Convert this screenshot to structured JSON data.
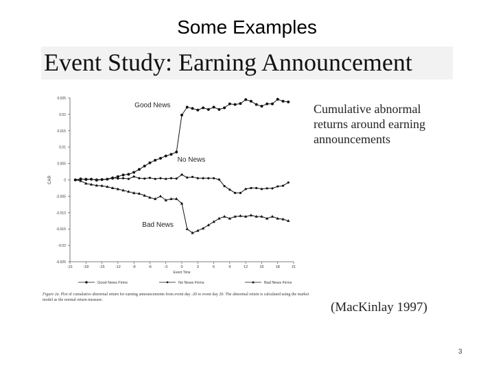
{
  "slide": {
    "title": "Some Examples",
    "banner": "Event Study: Earning Announcement",
    "side_caption": "Cumulative abnormal returns around earning announcements",
    "citation": "(MacKinlay 1997)",
    "page_number": "3",
    "figure_label": "Figure 2a.",
    "figure_text": "Plot of cumulative abnormal return for earning announcements from event day -20 to event day 20. The abnormal return is calculated using the market model as the normal return measure."
  },
  "chart_data": {
    "type": "line",
    "x": [
      -20,
      -19,
      -18,
      -17,
      -16,
      -15,
      -14,
      -13,
      -12,
      -11,
      -10,
      -9,
      -8,
      -7,
      -6,
      -5,
      -4,
      -3,
      -2,
      -1,
      0,
      1,
      2,
      3,
      4,
      5,
      6,
      7,
      8,
      9,
      10,
      11,
      12,
      13,
      14,
      15,
      16,
      17,
      18,
      19,
      20
    ],
    "series": [
      {
        "name": "Good News Firms",
        "marker": "circle",
        "label": "Good News",
        "values": [
          0.0,
          0.0003,
          0.0001,
          0.0002,
          -0.0001,
          0.0001,
          0.0002,
          0.0005,
          0.001,
          0.0015,
          0.0017,
          0.0023,
          0.0032,
          0.0042,
          0.0052,
          0.006,
          0.0066,
          0.0073,
          0.0078,
          0.0085,
          0.0198,
          0.0222,
          0.0218,
          0.0213,
          0.022,
          0.0215,
          0.0222,
          0.0215,
          0.022,
          0.0232,
          0.023,
          0.0233,
          0.0245,
          0.024,
          0.023,
          0.0225,
          0.0232,
          0.0232,
          0.0246,
          0.024,
          0.0238
        ]
      },
      {
        "name": "No News Firms",
        "marker": "dot",
        "label": "No News",
        "values": [
          0.0,
          0.0001,
          0.0003,
          0.0001,
          0.0001,
          0.0,
          0.0002,
          0.0007,
          0.0004,
          0.0005,
          0.0003,
          0.001,
          0.0005,
          0.0004,
          0.0006,
          0.0003,
          0.0005,
          0.0003,
          0.0005,
          0.0004,
          0.0016,
          0.0007,
          0.0009,
          0.0005,
          0.0005,
          0.0005,
          0.0005,
          0.0001,
          -0.0019,
          -0.003,
          -0.004,
          -0.004,
          -0.0028,
          -0.0025,
          -0.0025,
          -0.0028,
          -0.0026,
          -0.0026,
          -0.002,
          -0.0018,
          -0.0008
        ]
      },
      {
        "name": "Bad News Firms",
        "marker": "triangle",
        "label": "Bad News",
        "values": [
          0.0,
          -0.0003,
          -0.0011,
          -0.0014,
          -0.0017,
          -0.0018,
          -0.0021,
          -0.0025,
          -0.0028,
          -0.0032,
          -0.0036,
          -0.004,
          -0.0042,
          -0.0048,
          -0.0054,
          -0.0058,
          -0.005,
          -0.0062,
          -0.0058,
          -0.0058,
          -0.0072,
          -0.015,
          -0.0162,
          -0.0155,
          -0.0148,
          -0.0138,
          -0.0128,
          -0.0118,
          -0.0112,
          -0.0118,
          -0.0112,
          -0.011,
          -0.0112,
          -0.0108,
          -0.0112,
          -0.0112,
          -0.0118,
          -0.0112,
          -0.0118,
          -0.012,
          -0.0125
        ]
      }
    ],
    "ylabel": "CAR",
    "xlabel": "Event Time",
    "xticks": [
      -21,
      -18,
      -15,
      -12,
      -9,
      -6,
      -3,
      0,
      3,
      6,
      9,
      12,
      15,
      18,
      21
    ],
    "xtick_labels": [
      "-21",
      "-18",
      "-15",
      "-12",
      "-9",
      "-6",
      "-3",
      "0",
      "3",
      "6",
      "9",
      "12",
      "15",
      "18",
      "21"
    ],
    "yticks": [
      0.025,
      0.02,
      0.015,
      0.01,
      0.005,
      0,
      -0.005,
      -0.01,
      -0.015,
      -0.02,
      -0.025
    ],
    "ytick_labels": [
      "0.025",
      "0.02",
      "0.015",
      "0.01",
      "0.005",
      "0",
      "-0.005",
      "-0.010",
      "-0.015",
      "-0.02",
      "-0.025"
    ],
    "xlim": [
      -21,
      21
    ],
    "ylim": [
      -0.025,
      0.025
    ],
    "grid": false,
    "legend_placement": "bottom"
  }
}
